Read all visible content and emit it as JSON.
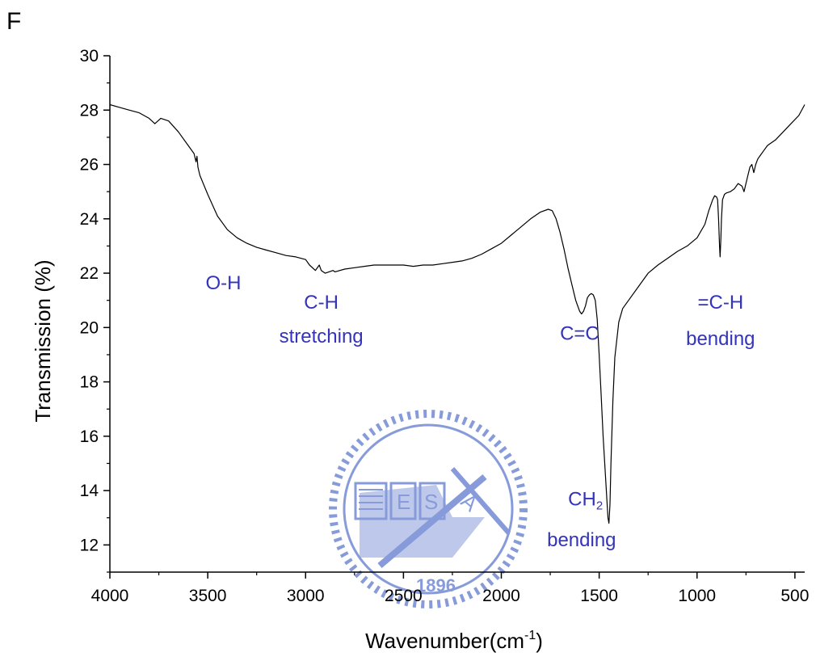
{
  "panel_label": "F",
  "watermark": {
    "text": "1896",
    "letters": [
      "E",
      "S",
      "A"
    ],
    "color": "#3f5fc4"
  },
  "chart_data": {
    "type": "line",
    "xlabel": "Wavenumber(cm",
    "xlabel_sup": "-1",
    "xlabel_end": ")",
    "ylabel": "Transmission (%)",
    "xlim": [
      4000,
      450
    ],
    "ylim": [
      11,
      30
    ],
    "x_reversed": true,
    "x_ticks": [
      4000,
      3500,
      3000,
      2500,
      2000,
      1500,
      1000,
      500
    ],
    "x_tick_labels": [
      "4000",
      "3500",
      "3000",
      "2500",
      "2000",
      "1500",
      "1000",
      "500"
    ],
    "y_ticks": [
      12,
      14,
      16,
      18,
      20,
      22,
      24,
      26,
      28,
      30
    ],
    "y_tick_labels": [
      "12",
      "14",
      "16",
      "18",
      "20",
      "22",
      "24",
      "26",
      "28",
      "30"
    ],
    "grid": false,
    "line_color": "#000000",
    "annotation_color": "#3333bb",
    "series": [
      {
        "x": [
          4000,
          3950,
          3900,
          3850,
          3800,
          3770,
          3740,
          3700,
          3650,
          3600,
          3570,
          3560,
          3555,
          3550,
          3540,
          3500,
          3450,
          3400,
          3350,
          3300,
          3250,
          3200,
          3150,
          3100,
          3050,
          3000,
          2980,
          2950,
          2930,
          2920,
          2900,
          2880,
          2860,
          2850,
          2800,
          2750,
          2700,
          2650,
          2600,
          2550,
          2500,
          2450,
          2400,
          2350,
          2300,
          2250,
          2200,
          2150,
          2100,
          2050,
          2000,
          1950,
          1900,
          1850,
          1800,
          1760,
          1740,
          1720,
          1700,
          1680,
          1660,
          1640,
          1620,
          1600,
          1590,
          1580,
          1570,
          1560,
          1550,
          1540,
          1530,
          1520,
          1510,
          1500,
          1490,
          1480,
          1470,
          1460,
          1455,
          1450,
          1445,
          1440,
          1430,
          1420,
          1400,
          1380,
          1350,
          1300,
          1250,
          1200,
          1150,
          1100,
          1050,
          1000,
          960,
          940,
          920,
          910,
          900,
          895,
          890,
          885,
          882,
          878,
          875,
          870,
          860,
          850,
          830,
          810,
          790,
          770,
          760,
          750,
          740,
          730,
          720,
          710,
          700,
          690,
          680,
          660,
          640,
          600,
          560,
          520,
          480,
          450
        ],
        "y": [
          28.2,
          28.1,
          28.0,
          27.9,
          27.7,
          27.5,
          27.7,
          27.6,
          27.2,
          26.7,
          26.4,
          26.1,
          26.3,
          25.9,
          25.6,
          24.9,
          24.1,
          23.6,
          23.3,
          23.1,
          22.95,
          22.85,
          22.75,
          22.65,
          22.6,
          22.5,
          22.3,
          22.1,
          22.3,
          22.1,
          22.0,
          22.05,
          22.1,
          22.05,
          22.15,
          22.2,
          22.25,
          22.3,
          22.3,
          22.3,
          22.3,
          22.25,
          22.3,
          22.3,
          22.35,
          22.4,
          22.45,
          22.55,
          22.7,
          22.9,
          23.1,
          23.4,
          23.7,
          24.0,
          24.25,
          24.35,
          24.3,
          24.0,
          23.5,
          22.9,
          22.2,
          21.6,
          21.0,
          20.6,
          20.5,
          20.6,
          20.8,
          21.1,
          21.2,
          21.25,
          21.2,
          21.0,
          20.3,
          19.0,
          17.5,
          16.0,
          14.8,
          13.6,
          13.0,
          12.8,
          13.5,
          15.0,
          17.3,
          18.9,
          20.2,
          20.7,
          21.0,
          21.5,
          22.0,
          22.3,
          22.55,
          22.8,
          23.0,
          23.3,
          23.8,
          24.3,
          24.7,
          24.85,
          24.8,
          24.7,
          24.0,
          23.0,
          22.6,
          23.3,
          24.0,
          24.7,
          24.9,
          24.95,
          25.0,
          25.1,
          25.3,
          25.2,
          25.0,
          25.3,
          25.6,
          25.9,
          26.0,
          25.7,
          26.0,
          26.2,
          26.3,
          26.5,
          26.7,
          26.9,
          27.2,
          27.5,
          27.8,
          28.2
        ]
      }
    ],
    "annotations": [
      {
        "text": "O-H",
        "x": 3420,
        "y": 21.4
      },
      {
        "text": "C-H",
        "x": 2920,
        "y": 20.7
      },
      {
        "text": "stretching",
        "x": 2920,
        "y": 19.45
      },
      {
        "text": "C=C",
        "x": 1600,
        "y": 19.55
      },
      {
        "text": "=C-H",
        "x": 880,
        "y": 20.7
      },
      {
        "text": "bending",
        "x": 880,
        "y": 19.35
      },
      {
        "text": "CH",
        "sub": "2",
        "x": 1570,
        "y": 13.45
      },
      {
        "text": "bending",
        "x": 1590,
        "y": 11.95
      }
    ]
  }
}
